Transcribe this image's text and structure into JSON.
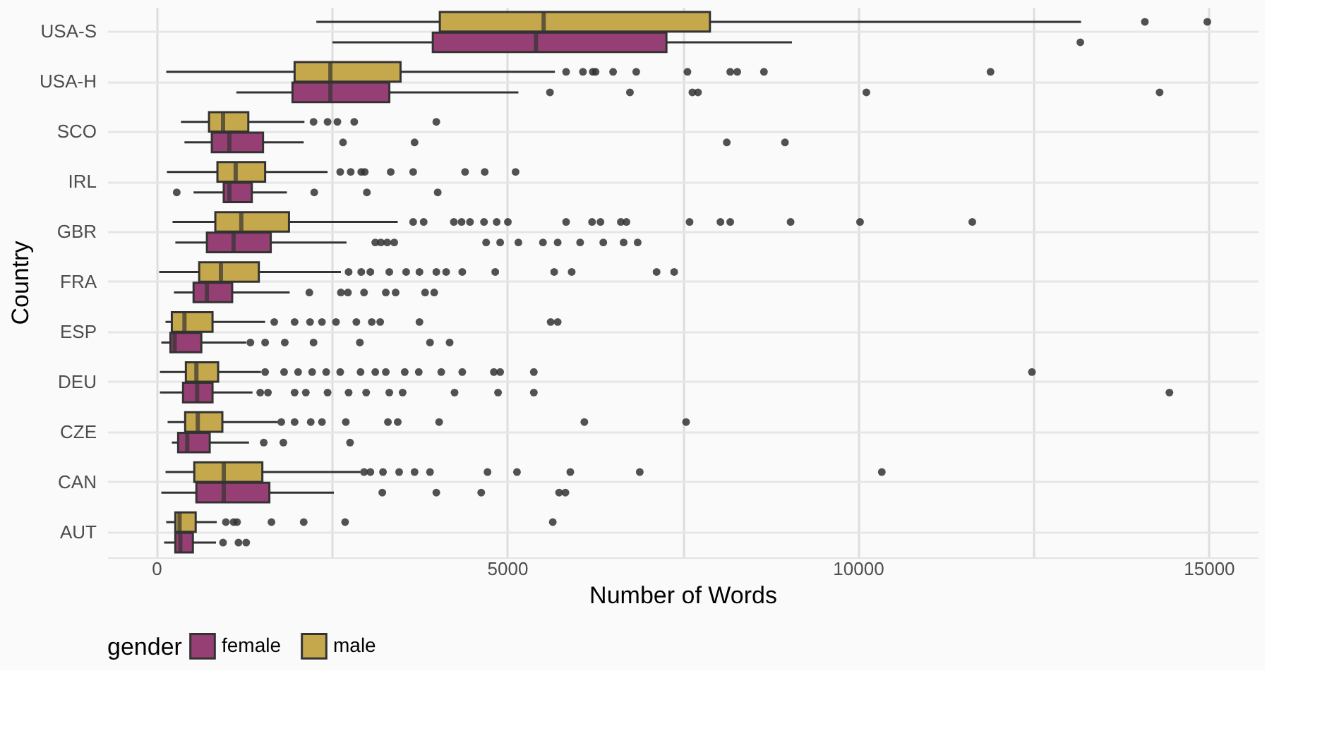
{
  "chart_data": {
    "type": "box",
    "orientation": "horizontal",
    "xlabel": "Number of Words",
    "ylabel": "Country",
    "legend_title": "gender",
    "legend": "bottom",
    "grid": true,
    "categories": [
      "USA-S",
      "USA-H",
      "SCO",
      "IRL",
      "GBR",
      "FRA",
      "ESP",
      "DEU",
      "CZE",
      "CAN",
      "AUT"
    ],
    "xlim": [
      -700,
      15700
    ],
    "xticks": [
      0,
      {
        "value": 2500,
        "label": null
      },
      5000,
      {
        "value": 7500,
        "label": null
      },
      10000,
      {
        "value": 12500,
        "label": null
      },
      15000
    ],
    "series": [
      {
        "name": "female",
        "color": "#963f74",
        "boxes": [
          {
            "low": 2510,
            "q1": 3940,
            "median": 5410,
            "q3": 7270,
            "high": 9060,
            "outliers": [
              13170
            ]
          },
          {
            "low": 1140,
            "q1": 1940,
            "median": 2480,
            "q3": 3320,
            "high": 5160,
            "outliers": [
              5610,
              6750,
              7640,
              7720,
              10120,
              14300
            ]
          },
          {
            "low": 400,
            "q1": 790,
            "median": 1040,
            "q3": 1520,
            "high": 2100,
            "outliers": [
              2660,
              3680,
              8130,
              8960
            ]
          },
          {
            "low": 530,
            "q1": 960,
            "median": 1040,
            "q3": 1360,
            "high": 1860,
            "outliers": [
              290,
              2250,
              3000,
              4010
            ]
          },
          {
            "low": 270,
            "q1": 720,
            "median": 1100,
            "q3": 1630,
            "high": 2710,
            "outliers": [
              3120,
              3200,
              3290,
              3390,
              4700,
              4900,
              5160,
              5510,
              5720,
              6040,
              6370,
              6660,
              6860
            ]
          },
          {
            "low": 250,
            "q1": 530,
            "median": 720,
            "q3": 1080,
            "high": 1900,
            "outliers": [
              2180,
              2630,
              2730,
              2960,
              3270,
              3410,
              3830,
              3960
            ]
          },
          {
            "low": 70,
            "q1": 200,
            "median": 260,
            "q3": 640,
            "high": 1280,
            "outliers": [
              1340,
              1550,
              1830,
              2240,
              2900,
              3900,
              4180
            ]
          },
          {
            "low": 50,
            "q1": 380,
            "median": 580,
            "q3": 800,
            "high": 1370,
            "outliers": [
              1480,
              1590,
              1970,
              2130,
              2440,
              2740,
              2990,
              3320,
              3510,
              4250,
              4870,
              5380,
              14440
            ]
          },
          {
            "low": 220,
            "q1": 310,
            "median": 440,
            "q3": 760,
            "high": 1320,
            "outliers": [
              1530,
              1810,
              2760
            ]
          },
          {
            "low": 70,
            "q1": 570,
            "median": 960,
            "q3": 1610,
            "high": 2530,
            "outliers": [
              3220,
              3990,
              4630,
              5740,
              5830
            ]
          },
          {
            "low": 110,
            "q1": 270,
            "median": 340,
            "q3": 520,
            "high": 850,
            "outliers": [
              950,
              1170,
              1280
            ]
          }
        ]
      },
      {
        "name": "male",
        "color": "#c6a84c",
        "boxes": [
          {
            "low": 2280,
            "q1": 4040,
            "median": 5520,
            "q3": 7890,
            "high": 13180,
            "outliers": [
              14090,
              14980
            ]
          },
          {
            "low": 140,
            "q1": 1970,
            "median": 2480,
            "q3": 3480,
            "high": 5680,
            "outliers": [
              5840,
              6080,
              6220,
              6260,
              6510,
              6840,
              7570,
              8180,
              8280,
              8660,
              11890
            ]
          },
          {
            "low": 350,
            "q1": 750,
            "median": 950,
            "q3": 1310,
            "high": 2110,
            "outliers": [
              2240,
              2440,
              2580,
              2820,
              3990
            ]
          },
          {
            "low": 150,
            "q1": 870,
            "median": 1130,
            "q3": 1550,
            "high": 2440,
            "outliers": [
              2620,
              2770,
              2920,
              2970,
              3340,
              3660,
              4400,
              4680,
              5120
            ]
          },
          {
            "low": 230,
            "q1": 840,
            "median": 1210,
            "q3": 1890,
            "high": 3440,
            "outliers": [
              3660,
              3810,
              4240,
              4350,
              4470,
              4670,
              4850,
              5010,
              5840,
              6210,
              6330,
              6620,
              6700,
              7600,
              8040,
              8180,
              9040,
              10030,
              11630
            ]
          },
          {
            "low": 40,
            "q1": 610,
            "median": 920,
            "q3": 1460,
            "high": 2630,
            "outliers": [
              2740,
              2920,
              3050,
              3320,
              3560,
              3750,
              3990,
              4130,
              4360,
              4830,
              5670,
              5920,
              7130,
              7380
            ]
          },
          {
            "low": 130,
            "q1": 220,
            "median": 400,
            "q3": 800,
            "high": 1550,
            "outliers": [
              1680,
              1970,
              2190,
              2360,
              2560,
              2850,
              3070,
              3190,
              3750,
              5620,
              5720
            ]
          },
          {
            "low": 50,
            "q1": 420,
            "median": 570,
            "q3": 880,
            "high": 1490,
            "outliers": [
              1550,
              1820,
              2020,
              2220,
              2420,
              2620,
              2910,
              3120,
              3270,
              3540,
              3740,
              4060,
              4360,
              4810,
              4900,
              5380,
              12480
            ]
          },
          {
            "low": 160,
            "q1": 410,
            "median": 590,
            "q3": 940,
            "high": 1730,
            "outliers": [
              1780,
              1970,
              2200,
              2360,
              2700,
              3300,
              3440,
              4030,
              6100,
              7550
            ]
          },
          {
            "low": 130,
            "q1": 540,
            "median": 960,
            "q3": 1510,
            "high": 2910,
            "outliers": [
              2960,
              3050,
              3230,
              3460,
              3680,
              3900,
              4720,
              5140,
              5900,
              6890,
              10340
            ]
          },
          {
            "low": 140,
            "q1": 270,
            "median": 330,
            "q3": 560,
            "high": 860,
            "outliers": [
              990,
              1100,
              1150,
              1640,
              2100,
              2690,
              5650
            ]
          }
        ]
      }
    ]
  }
}
